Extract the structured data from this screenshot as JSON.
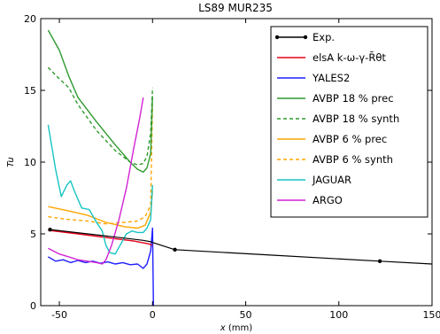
{
  "chart_data": {
    "type": "line",
    "title": "LS89 MUR235",
    "xlabel": "x (mm)",
    "ylabel": "Tu",
    "xlim": [
      -60,
      150
    ],
    "ylim": [
      0,
      20
    ],
    "xticks": [
      -50,
      0,
      50,
      100,
      150
    ],
    "yticks": [
      0,
      5,
      10,
      15,
      20
    ],
    "grid": false,
    "legend_position": "top-right",
    "series": [
      {
        "name": "Exp.",
        "color": "#000000",
        "dash": "solid",
        "marker": "dot",
        "points": [
          [
            -55,
            5.3
          ],
          [
            -28,
            4.9
          ],
          [
            -5,
            4.55
          ],
          [
            -1,
            4.45
          ],
          [
            0,
            4.4
          ],
          [
            12,
            3.9
          ],
          [
            60,
            3.55
          ],
          [
            122,
            3.1
          ],
          [
            150,
            2.9
          ]
        ]
      },
      {
        "name": "elsA k-ω-γ-R̄θt",
        "color": "#e8001c",
        "dash": "solid",
        "points": [
          [
            -56,
            5.25
          ],
          [
            -40,
            5.0
          ],
          [
            -25,
            4.75
          ],
          [
            -10,
            4.5
          ],
          [
            -2,
            4.3
          ],
          [
            0,
            4.2
          ]
        ]
      },
      {
        "name": "YALES2",
        "color": "#1f1fff",
        "dash": "solid",
        "points": [
          [
            -56,
            3.4
          ],
          [
            -52,
            3.1
          ],
          [
            -48,
            3.2
          ],
          [
            -44,
            3.0
          ],
          [
            -40,
            3.15
          ],
          [
            -36,
            3.0
          ],
          [
            -32,
            3.1
          ],
          [
            -28,
            2.95
          ],
          [
            -24,
            3.05
          ],
          [
            -20,
            2.9
          ],
          [
            -16,
            3.0
          ],
          [
            -12,
            2.85
          ],
          [
            -8,
            2.9
          ],
          [
            -5,
            2.6
          ],
          [
            -3,
            2.9
          ],
          [
            -1,
            3.8
          ],
          [
            0,
            5.4
          ],
          [
            0.5,
            0.0
          ]
        ]
      },
      {
        "name": "AVBP 18 % prec",
        "color": "#2e9a2e",
        "dash": "solid",
        "points": [
          [
            -56,
            19.2
          ],
          [
            -50,
            17.8
          ],
          [
            -45,
            16.0
          ],
          [
            -40,
            14.5
          ],
          [
            -30,
            12.8
          ],
          [
            -20,
            11.2
          ],
          [
            -12,
            10.0
          ],
          [
            -8,
            9.5
          ],
          [
            -5,
            9.3
          ],
          [
            -3,
            9.6
          ],
          [
            -1,
            10.6
          ],
          [
            0,
            14.6
          ]
        ]
      },
      {
        "name": "AVBP 18 % synth",
        "color": "#2e9a2e",
        "dash": "dashed",
        "points": [
          [
            -56,
            16.6
          ],
          [
            -50,
            15.8
          ],
          [
            -45,
            15.2
          ],
          [
            -40,
            14.0
          ],
          [
            -30,
            12.2
          ],
          [
            -20,
            10.8
          ],
          [
            -12,
            10.0
          ],
          [
            -8,
            9.8
          ],
          [
            -5,
            9.9
          ],
          [
            -3,
            10.4
          ],
          [
            -1,
            12.0
          ],
          [
            0,
            15.2
          ]
        ]
      },
      {
        "name": "AVBP 6 % prec",
        "color": "#ffa500",
        "dash": "solid",
        "points": [
          [
            -56,
            6.9
          ],
          [
            -45,
            6.6
          ],
          [
            -35,
            6.3
          ],
          [
            -25,
            5.8
          ],
          [
            -15,
            5.5
          ],
          [
            -8,
            5.4
          ],
          [
            -4,
            5.6
          ],
          [
            -1,
            6.5
          ],
          [
            0,
            8.0
          ]
        ]
      },
      {
        "name": "AVBP 6 % synth",
        "color": "#ffa500",
        "dash": "dashed",
        "points": [
          [
            -56,
            6.2
          ],
          [
            -45,
            6.0
          ],
          [
            -35,
            5.9
          ],
          [
            -25,
            5.7
          ],
          [
            -15,
            5.8
          ],
          [
            -8,
            5.9
          ],
          [
            -4,
            6.2
          ],
          [
            -1,
            7.0
          ],
          [
            0,
            14.0
          ]
        ]
      },
      {
        "name": "JAGUAR",
        "color": "#17c4c4",
        "dash": "solid",
        "points": [
          [
            -56,
            12.6
          ],
          [
            -52,
            9.5
          ],
          [
            -49,
            7.6
          ],
          [
            -46,
            8.4
          ],
          [
            -44,
            8.7
          ],
          [
            -42,
            8.0
          ],
          [
            -38,
            6.8
          ],
          [
            -34,
            6.7
          ],
          [
            -30,
            5.8
          ],
          [
            -27,
            5.2
          ],
          [
            -25,
            4.2
          ],
          [
            -23,
            3.7
          ],
          [
            -20,
            3.6
          ],
          [
            -17,
            4.3
          ],
          [
            -14,
            5.0
          ],
          [
            -11,
            5.2
          ],
          [
            -8,
            5.1
          ],
          [
            -5,
            5.1
          ],
          [
            -3,
            5.4
          ],
          [
            -1,
            6.0
          ],
          [
            0,
            8.4
          ]
        ]
      },
      {
        "name": "ARGO",
        "color": "#d323d3",
        "dash": "solid",
        "points": [
          [
            -56,
            4.0
          ],
          [
            -50,
            3.6
          ],
          [
            -45,
            3.4
          ],
          [
            -40,
            3.2
          ],
          [
            -35,
            3.1
          ],
          [
            -30,
            3.0
          ],
          [
            -27,
            2.9
          ],
          [
            -25,
            3.2
          ],
          [
            -22,
            4.2
          ],
          [
            -18,
            6.0
          ],
          [
            -14,
            8.2
          ],
          [
            -10,
            11.0
          ],
          [
            -7,
            13.0
          ],
          [
            -5,
            14.5
          ]
        ]
      }
    ]
  }
}
